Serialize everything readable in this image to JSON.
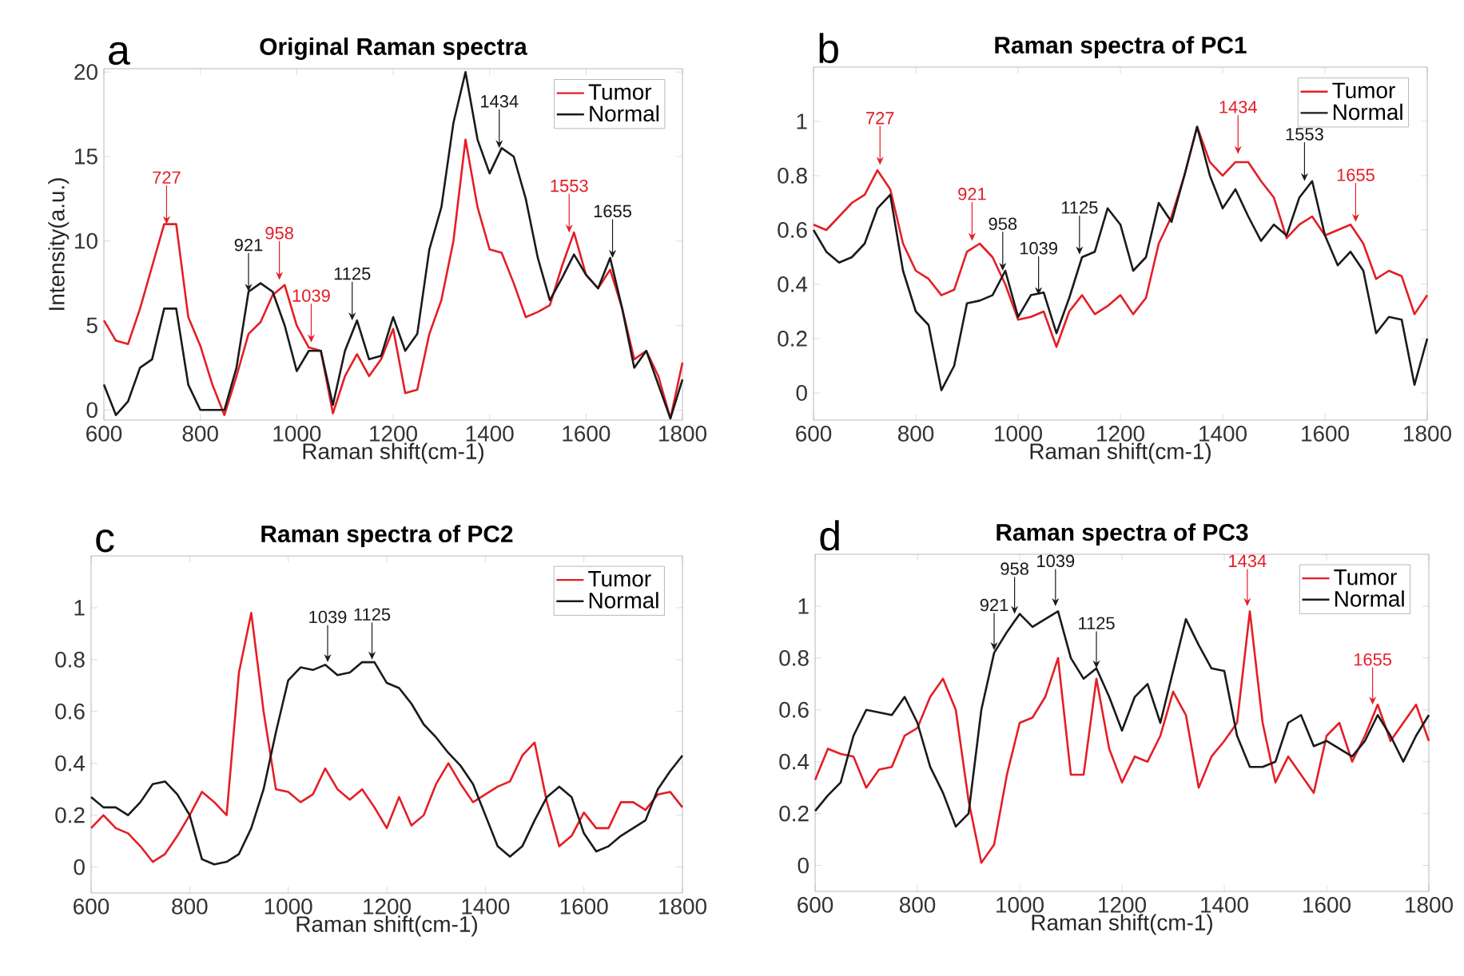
{
  "chart_data": [
    {
      "type": "line",
      "title": "Original Raman spectra",
      "xlabel": "Raman shift(cm-1)",
      "ylabel": "Intensity(a.u.)",
      "x": [
        600,
        625,
        650,
        675,
        700,
        725,
        750,
        775,
        800,
        825,
        850,
        875,
        900,
        925,
        950,
        975,
        1000,
        1025,
        1050,
        1075,
        1100,
        1125,
        1150,
        1175,
        1200,
        1225,
        1250,
        1275,
        1300,
        1325,
        1350,
        1375,
        1400,
        1425,
        1450,
        1475,
        1500,
        1525,
        1550,
        1575,
        1600,
        1625,
        1650,
        1675,
        1700,
        1725,
        1750,
        1775,
        1800
      ],
      "series": [
        {
          "name": "Tumor",
          "color": "#e41e26",
          "values": [
            5.3,
            4.1,
            3.9,
            6.0,
            8.5,
            11.0,
            11.0,
            5.5,
            3.8,
            1.5,
            -0.3,
            2.0,
            4.5,
            5.2,
            6.8,
            7.4,
            5.0,
            3.7,
            3.5,
            -0.2,
            2.0,
            3.3,
            2.0,
            3.0,
            4.8,
            1.0,
            1.2,
            4.5,
            6.5,
            10.0,
            16.0,
            12.0,
            9.5,
            9.3,
            7.5,
            5.5,
            5.8,
            6.2,
            8.5,
            10.5,
            8.0,
            7.2,
            8.3,
            6.0,
            3.0,
            3.5,
            2.0,
            -0.5,
            2.8
          ]
        },
        {
          "name": "Normal",
          "color": "#1a1a1a",
          "values": [
            1.5,
            -0.3,
            0.5,
            2.5,
            3.0,
            6.0,
            6.0,
            1.5,
            0.0,
            0.0,
            0.0,
            2.5,
            7.0,
            7.5,
            7.0,
            5.0,
            2.3,
            3.5,
            3.5,
            0.3,
            3.5,
            5.3,
            3.0,
            3.2,
            5.5,
            3.5,
            4.5,
            9.5,
            12.0,
            17.0,
            20.0,
            16.0,
            14.0,
            15.5,
            15.0,
            12.5,
            9.0,
            6.5,
            7.8,
            9.2,
            8.0,
            7.2,
            9.0,
            6.0,
            2.5,
            3.5,
            1.5,
            -0.5,
            1.8
          ]
        }
      ],
      "xlim": [
        600,
        1800
      ],
      "ylim": [
        -0.6,
        20.2
      ],
      "xticks": [
        600,
        800,
        1000,
        1200,
        1400,
        1600,
        1800
      ],
      "yticks": [
        0,
        5,
        10,
        15,
        20
      ],
      "legend": "top right",
      "grid": false,
      "line_style": "solid",
      "annotations": [
        "a",
        {
          "text": "727",
          "x": 730,
          "y": 11.0
        },
        {
          "text": "921",
          "x": 900,
          "y": 7.0
        },
        {
          "text": "958",
          "x": 964,
          "y": 7.7
        },
        {
          "text": "1039",
          "x": 1030,
          "y": 4.0
        },
        {
          "text": "1125",
          "x": 1115,
          "y": 5.3
        },
        {
          "text": "1434",
          "x": 1420,
          "y": 15.5
        },
        {
          "text": "1553",
          "x": 1565,
          "y": 10.5
        },
        {
          "text": "1655",
          "x": 1655,
          "y": 9.0
        }
      ]
    },
    {
      "type": "line",
      "title": "Raman spectra of PC1",
      "xlabel": "Raman shift(cm-1)",
      "x": [
        600,
        625,
        650,
        675,
        700,
        725,
        750,
        775,
        800,
        825,
        850,
        875,
        900,
        925,
        950,
        975,
        1000,
        1025,
        1050,
        1075,
        1100,
        1125,
        1150,
        1175,
        1200,
        1225,
        1250,
        1275,
        1300,
        1325,
        1350,
        1375,
        1400,
        1425,
        1450,
        1475,
        1500,
        1525,
        1550,
        1575,
        1600,
        1625,
        1650,
        1675,
        1700,
        1725,
        1750,
        1775,
        1800
      ],
      "series": [
        {
          "name": "Tumor",
          "color": "#e41e26",
          "values": [
            0.62,
            0.6,
            0.65,
            0.7,
            0.73,
            0.82,
            0.75,
            0.55,
            0.45,
            0.42,
            0.36,
            0.38,
            0.52,
            0.55,
            0.5,
            0.4,
            0.27,
            0.28,
            0.3,
            0.17,
            0.3,
            0.36,
            0.29,
            0.32,
            0.36,
            0.29,
            0.35,
            0.55,
            0.65,
            0.8,
            0.98,
            0.85,
            0.8,
            0.85,
            0.85,
            0.78,
            0.72,
            0.57,
            0.62,
            0.65,
            0.58,
            0.6,
            0.62,
            0.55,
            0.42,
            0.45,
            0.43,
            0.29,
            0.36
          ]
        },
        {
          "name": "Normal",
          "color": "#1a1a1a",
          "values": [
            0.6,
            0.52,
            0.48,
            0.5,
            0.55,
            0.68,
            0.73,
            0.45,
            0.3,
            0.25,
            0.01,
            0.1,
            0.33,
            0.34,
            0.36,
            0.45,
            0.28,
            0.36,
            0.37,
            0.22,
            0.35,
            0.5,
            0.52,
            0.68,
            0.62,
            0.45,
            0.5,
            0.7,
            0.63,
            0.8,
            0.98,
            0.8,
            0.68,
            0.75,
            0.65,
            0.56,
            0.62,
            0.58,
            0.72,
            0.78,
            0.58,
            0.47,
            0.52,
            0.45,
            0.22,
            0.28,
            0.27,
            0.03,
            0.2
          ]
        }
      ],
      "xlim": [
        600,
        1800
      ],
      "ylim": [
        -0.1,
        1.2
      ],
      "xticks": [
        600,
        800,
        1000,
        1200,
        1400,
        1600,
        1800
      ],
      "yticks": [
        0,
        0.2,
        0.4,
        0.6,
        0.8,
        1
      ],
      "legend": "top right",
      "grid": false,
      "line_style": "solid",
      "annotations": [
        "b",
        {
          "text": "727",
          "x": 730,
          "y": 0.84
        },
        {
          "text": "921",
          "x": 910,
          "y": 0.56
        },
        {
          "text": "958",
          "x": 970,
          "y": 0.45
        },
        {
          "text": "1039",
          "x": 1040,
          "y": 0.36
        },
        {
          "text": "1125",
          "x": 1120,
          "y": 0.51
        },
        {
          "text": "1434",
          "x": 1430,
          "y": 0.88
        },
        {
          "text": "1553",
          "x": 1560,
          "y": 0.78
        },
        {
          "text": "1655",
          "x": 1660,
          "y": 0.63
        }
      ]
    },
    {
      "type": "line",
      "title": "Raman spectra of PC2",
      "xlabel": "Raman shift(cm-1)",
      "x": [
        600,
        625,
        650,
        675,
        700,
        725,
        750,
        775,
        800,
        825,
        850,
        875,
        900,
        925,
        950,
        975,
        1000,
        1025,
        1050,
        1075,
        1100,
        1125,
        1150,
        1175,
        1200,
        1225,
        1250,
        1275,
        1300,
        1325,
        1350,
        1375,
        1400,
        1425,
        1450,
        1475,
        1500,
        1525,
        1550,
        1575,
        1600,
        1625,
        1650,
        1675,
        1700,
        1725,
        1750,
        1775,
        1800
      ],
      "series": [
        {
          "name": "Tumor",
          "color": "#e41e26",
          "values": [
            0.15,
            0.2,
            0.15,
            0.13,
            0.08,
            0.02,
            0.05,
            0.12,
            0.2,
            0.29,
            0.25,
            0.2,
            0.75,
            0.98,
            0.6,
            0.3,
            0.29,
            0.25,
            0.28,
            0.38,
            0.3,
            0.26,
            0.3,
            0.23,
            0.15,
            0.27,
            0.16,
            0.2,
            0.32,
            0.4,
            0.32,
            0.25,
            0.28,
            0.31,
            0.33,
            0.43,
            0.48,
            0.25,
            0.08,
            0.12,
            0.21,
            0.15,
            0.15,
            0.25,
            0.25,
            0.22,
            0.28,
            0.29,
            0.23
          ]
        },
        {
          "name": "Normal",
          "color": "#1a1a1a",
          "values": [
            0.27,
            0.23,
            0.23,
            0.2,
            0.25,
            0.32,
            0.33,
            0.28,
            0.2,
            0.03,
            0.01,
            0.02,
            0.05,
            0.15,
            0.3,
            0.52,
            0.72,
            0.77,
            0.76,
            0.78,
            0.74,
            0.75,
            0.79,
            0.79,
            0.71,
            0.69,
            0.63,
            0.55,
            0.5,
            0.44,
            0.39,
            0.32,
            0.2,
            0.08,
            0.04,
            0.08,
            0.18,
            0.27,
            0.31,
            0.27,
            0.13,
            0.06,
            0.08,
            0.12,
            0.15,
            0.18,
            0.3,
            0.37,
            0.43
          ]
        }
      ],
      "xlim": [
        600,
        1800
      ],
      "ylim": [
        -0.1,
        1.2
      ],
      "xticks": [
        600,
        800,
        1000,
        1200,
        1400,
        1600,
        1800
      ],
      "yticks": [
        0,
        0.2,
        0.4,
        0.6,
        0.8,
        1
      ],
      "legend": "top right",
      "grid": false,
      "line_style": "solid",
      "annotations": [
        "c",
        {
          "text": "1039",
          "x": 1080,
          "y": 0.79
        },
        {
          "text": "1125",
          "x": 1170,
          "y": 0.8
        }
      ]
    },
    {
      "type": "line",
      "title": "Raman spectra of PC3",
      "xlabel": "Raman shift(cm-1)",
      "x": [
        600,
        625,
        650,
        675,
        700,
        725,
        750,
        775,
        800,
        825,
        850,
        875,
        900,
        925,
        950,
        975,
        1000,
        1025,
        1050,
        1075,
        1100,
        1125,
        1150,
        1175,
        1200,
        1225,
        1250,
        1275,
        1300,
        1325,
        1350,
        1375,
        1400,
        1425,
        1450,
        1475,
        1500,
        1525,
        1550,
        1575,
        1600,
        1625,
        1650,
        1675,
        1700,
        1725,
        1750,
        1775,
        1800
      ],
      "series": [
        {
          "name": "Tumor",
          "color": "#e41e26",
          "values": [
            0.33,
            0.45,
            0.43,
            0.42,
            0.3,
            0.37,
            0.38,
            0.5,
            0.53,
            0.65,
            0.72,
            0.6,
            0.25,
            0.01,
            0.08,
            0.35,
            0.55,
            0.57,
            0.65,
            0.8,
            0.35,
            0.35,
            0.72,
            0.45,
            0.32,
            0.42,
            0.4,
            0.5,
            0.67,
            0.58,
            0.3,
            0.42,
            0.48,
            0.55,
            0.98,
            0.55,
            0.32,
            0.42,
            0.35,
            0.28,
            0.5,
            0.55,
            0.4,
            0.5,
            0.62,
            0.48,
            0.55,
            0.62,
            0.48
          ]
        },
        {
          "name": "Normal",
          "color": "#1a1a1a",
          "values": [
            0.21,
            0.27,
            0.32,
            0.5,
            0.6,
            0.59,
            0.58,
            0.65,
            0.55,
            0.38,
            0.28,
            0.15,
            0.2,
            0.6,
            0.82,
            0.9,
            0.97,
            0.92,
            0.95,
            0.98,
            0.8,
            0.72,
            0.76,
            0.65,
            0.52,
            0.65,
            0.7,
            0.55,
            0.75,
            0.95,
            0.85,
            0.76,
            0.75,
            0.5,
            0.38,
            0.38,
            0.4,
            0.55,
            0.58,
            0.46,
            0.48,
            0.45,
            0.42,
            0.48,
            0.58,
            0.5,
            0.4,
            0.5,
            0.58
          ]
        }
      ],
      "xlim": [
        600,
        1800
      ],
      "ylim": [
        -0.1,
        1.2
      ],
      "xticks": [
        600,
        800,
        1000,
        1200,
        1400,
        1600,
        1800
      ],
      "yticks": [
        0,
        0.2,
        0.4,
        0.6,
        0.8,
        1
      ],
      "legend": "top right",
      "grid": false,
      "line_style": "solid",
      "annotations": [
        "d",
        {
          "text": "921",
          "x": 950,
          "y": 0.83
        },
        {
          "text": "958",
          "x": 990,
          "y": 0.97
        },
        {
          "text": "1039",
          "x": 1070,
          "y": 1.0
        },
        {
          "text": "1125",
          "x": 1150,
          "y": 0.76
        },
        {
          "text": "1434",
          "x": 1445,
          "y": 1.0
        },
        {
          "text": "1655",
          "x": 1690,
          "y": 0.62
        }
      ]
    }
  ]
}
